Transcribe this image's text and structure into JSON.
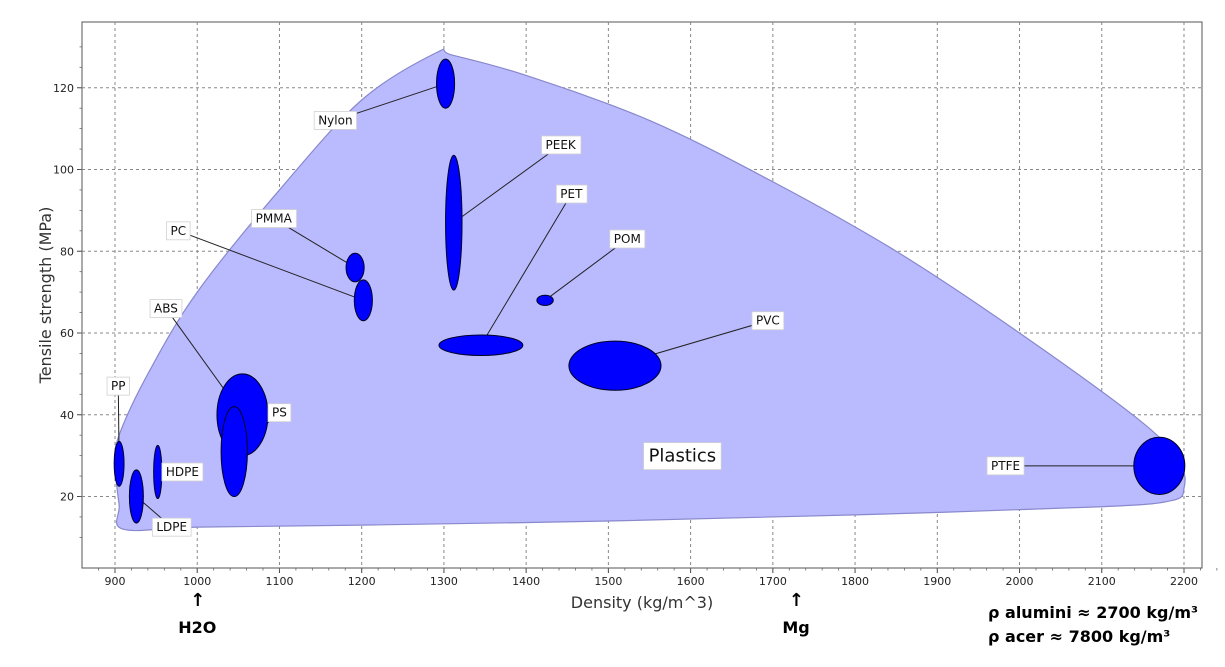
{
  "chart_data": {
    "type": "scatter",
    "subtype": "material-property-bubble-chart",
    "xlabel": "Density (kg/m^3)",
    "ylabel": "Tensile strength (MPa)",
    "xlim": [
      880,
      2250
    ],
    "ylim": [
      7,
      135
    ],
    "x_ticks": [
      900,
      1000,
      1100,
      1200,
      1300,
      1400,
      1500,
      1600,
      1700,
      1800,
      1900,
      2000,
      2100,
      2200
    ],
    "y_ticks": [
      20,
      40,
      60,
      80,
      100,
      120
    ],
    "grid": true,
    "family": {
      "name": "Plastics",
      "label_at": [
        1590,
        30
      ],
      "envelope": [
        [
          910,
          12
        ],
        [
          1000,
          12.5
        ],
        [
          1200,
          13
        ],
        [
          1500,
          14
        ],
        [
          1800,
          15.5
        ],
        [
          2100,
          17.5
        ],
        [
          2185,
          19
        ],
        [
          2200,
          22
        ],
        [
          2195,
          28
        ],
        [
          2150,
          38
        ],
        [
          2000,
          60
        ],
        [
          1850,
          80
        ],
        [
          1700,
          97
        ],
        [
          1550,
          112
        ],
        [
          1400,
          123
        ],
        [
          1310,
          128
        ],
        [
          1290,
          128.5
        ],
        [
          1200,
          117
        ],
        [
          1100,
          95
        ],
        [
          1000,
          70
        ],
        [
          940,
          50
        ],
        [
          905,
          35
        ],
        [
          900,
          28
        ],
        [
          905,
          18
        ]
      ],
      "fill_color": "#babaff",
      "edge_color": "#8888cc"
    },
    "materials": [
      {
        "name": "Nylon",
        "x": 1302,
        "y": 121,
        "w": 22,
        "h": 12,
        "label_at": [
          1168,
          112
        ]
      },
      {
        "name": "PEEK",
        "x": 1312,
        "y": 87,
        "w": 20,
        "h": 33,
        "label_at": [
          1442,
          106
        ]
      },
      {
        "name": "PET",
        "x": 1345,
        "y": 57,
        "w": 102,
        "h": 5,
        "label_at": [
          1455,
          94
        ]
      },
      {
        "name": "POM",
        "x": 1423,
        "y": 68,
        "w": 20,
        "h": 2.5,
        "label_at": [
          1523,
          83
        ]
      },
      {
        "name": "PMMA",
        "x": 1192,
        "y": 76,
        "w": 22,
        "h": 7,
        "label_at": [
          1093,
          88
        ]
      },
      {
        "name": "PC",
        "x": 1202,
        "y": 68,
        "w": 22,
        "h": 10,
        "label_at": [
          977,
          85
        ]
      },
      {
        "name": "ABS",
        "x": 1055,
        "y": 40,
        "w": 62,
        "h": 20,
        "label_at": [
          962,
          66
        ]
      },
      {
        "name": "PS",
        "x": 1045,
        "y": 31,
        "w": 32,
        "h": 22,
        "label_at": [
          1100,
          40.5
        ]
      },
      {
        "name": "PP",
        "x": 905,
        "y": 28,
        "w": 12,
        "h": 11,
        "label_at": [
          904,
          47
        ]
      },
      {
        "name": "HDPE",
        "x": 952,
        "y": 26,
        "w": 10,
        "h": 13,
        "label_at": [
          982,
          26
        ]
      },
      {
        "name": "LDPE",
        "x": 926,
        "y": 20,
        "w": 17,
        "h": 13,
        "label_at": [
          969,
          12.5
        ]
      },
      {
        "name": "PVC",
        "x": 1508,
        "y": 52,
        "w": 112,
        "h": 12,
        "label_at": [
          1694,
          63
        ]
      },
      {
        "name": "PTFE",
        "x": 2170,
        "y": 27.5,
        "w": 62,
        "h": 14,
        "label_at": [
          1983,
          27.5
        ]
      }
    ],
    "bubble_color": "#0000ff",
    "annotations": {
      "arrows": [
        {
          "x": 1000,
          "label": "H2O"
        },
        {
          "x": 1728,
          "label": "Mg"
        }
      ],
      "notes": [
        "ρ alumini ≈ 2700 kg/m³",
        "ρ acer ≈ 7800 kg/m³"
      ]
    }
  }
}
